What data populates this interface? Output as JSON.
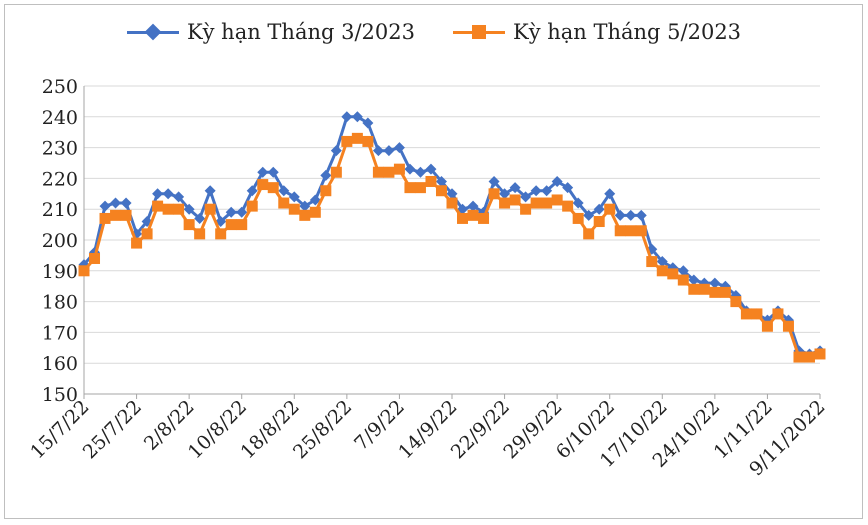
{
  "chart_data": {
    "type": "line",
    "title": "",
    "xlabel": "",
    "ylabel": "",
    "ylim": [
      150,
      250
    ],
    "yticks": [
      150,
      160,
      170,
      180,
      190,
      200,
      210,
      220,
      230,
      240,
      250
    ],
    "grid": true,
    "legend_position": "top",
    "x_tick_labels": [
      "15/7/22",
      "25/7/22",
      "2/8/22",
      "10/8/22",
      "18/8/22",
      "25/8/22",
      "7/9/22",
      "14/9/22",
      "22/9/22",
      "29/9/22",
      "6/10/22",
      "17/10/22",
      "24/10/22",
      "1/11/22",
      "9/11/2022"
    ],
    "x_tick_indices": [
      0,
      5,
      10,
      15,
      20,
      25,
      30,
      35,
      40,
      45,
      50,
      55,
      60,
      65,
      70
    ],
    "series": [
      {
        "name": "Kỳ hạn Tháng 3/2023",
        "color": "#4472c4",
        "marker": "diamond",
        "values": [
          192,
          196,
          211,
          212,
          212,
          202,
          206,
          215,
          215,
          214,
          210,
          207,
          216,
          206,
          209,
          209,
          216,
          222,
          222,
          216,
          214,
          211,
          213,
          221,
          229,
          240,
          240,
          238,
          229,
          229,
          230,
          223,
          222,
          223,
          219,
          215,
          210,
          211,
          209,
          219,
          215,
          217,
          214,
          216,
          216,
          219,
          217,
          212,
          208,
          210,
          215,
          208,
          208,
          208,
          197,
          193,
          191,
          190,
          187,
          186,
          186,
          185,
          182,
          177,
          176,
          174,
          177,
          174,
          164,
          163,
          164
        ]
      },
      {
        "name": "Kỳ hạn Tháng 5/2023",
        "color": "#f58220",
        "marker": "square",
        "values": [
          190,
          194,
          207,
          208,
          208,
          199,
          202,
          211,
          210,
          210,
          205,
          202,
          210,
          202,
          205,
          205,
          211,
          218,
          217,
          212,
          210,
          208,
          209,
          216,
          222,
          232,
          233,
          232,
          222,
          222,
          223,
          217,
          217,
          219,
          216,
          212,
          207,
          208,
          207,
          215,
          212,
          213,
          210,
          212,
          212,
          213,
          211,
          207,
          202,
          206,
          210,
          203,
          203,
          203,
          193,
          190,
          189,
          187,
          184,
          184,
          183,
          183,
          180,
          176,
          176,
          172,
          176,
          172,
          162,
          162,
          163
        ]
      }
    ]
  }
}
